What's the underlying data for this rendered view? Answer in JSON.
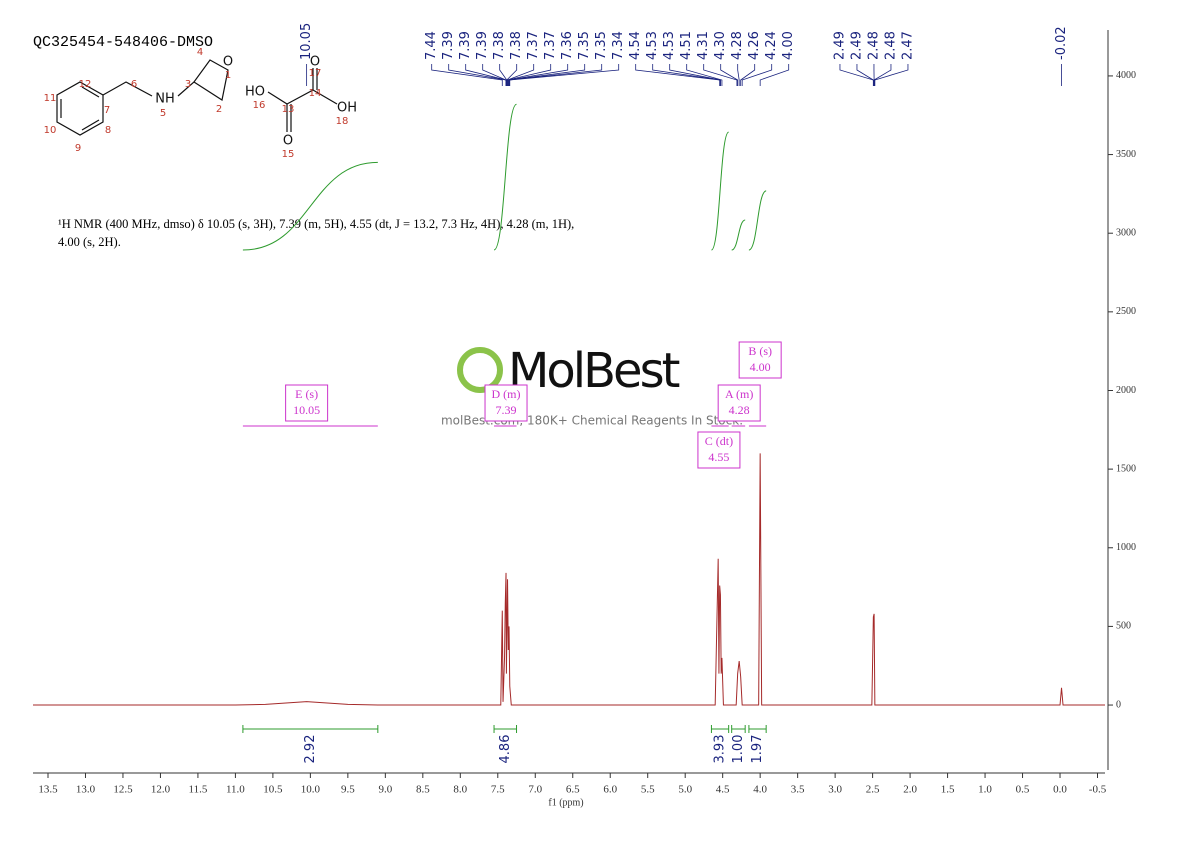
{
  "chart_data": {
    "type": "nmr",
    "title": "QC325454-548406-DMSO",
    "description": "¹H NMR (400 MHz, dmso) δ 10.05 (s, 3H), 7.39 (m, 5H), 4.55 (dt, J = 13.2, 7.3 Hz, 4H), 4.28 (m, 1H),",
    "description_line2": "4.00 (s, 2H).",
    "x_label": "f1 (ppm)",
    "watermark": {
      "logo": "MolBest",
      "text": "molBest.com, 180K+ Chemical Reagents In Stock."
    },
    "molecule": {
      "atoms": [
        "12",
        "11",
        "10",
        "9",
        "8",
        "7",
        "6",
        "NH",
        "5",
        "3",
        "4",
        "O",
        "1",
        "2",
        "HO",
        "16",
        "13",
        "O",
        "15",
        "14",
        "O",
        "17",
        "OH",
        "18"
      ]
    },
    "xlim": [
      13.7,
      -0.6
    ],
    "ylim": [
      -413,
      4292
    ],
    "xticks": [
      13.5,
      {
        "value": 13,
        "label": "13.0"
      },
      12.5,
      {
        "value": 12,
        "label": "12.0"
      },
      11.5,
      {
        "value": 11,
        "label": "11.0"
      },
      10.5,
      {
        "value": 10,
        "label": "10.0"
      },
      9.5,
      {
        "value": 9,
        "label": "9.0"
      },
      8.5,
      {
        "value": 8,
        "label": "8.0"
      },
      7.5,
      {
        "value": 7,
        "label": "7.0"
      },
      6.5,
      {
        "value": 6,
        "label": "6.0"
      },
      5.5,
      {
        "value": 5,
        "label": "5.0"
      },
      4.5,
      {
        "value": 4,
        "label": "4.0"
      },
      3.5,
      {
        "value": 3,
        "label": "3.0"
      },
      2.5,
      {
        "value": 2,
        "label": "2.0"
      },
      1.5,
      {
        "value": 1,
        "label": "1.0"
      },
      0.5,
      {
        "value": 0,
        "label": "0.0"
      },
      -0.5
    ],
    "yticks": [
      0,
      500,
      1000,
      1500,
      2000,
      2500,
      3000,
      3500,
      4000
    ],
    "series": [
      {
        "color": "#a52a2a",
        "x": [
          13.7,
          11,
          10.6,
          10.3,
          10.05,
          9.8,
          9.5,
          9.1,
          7.46,
          7.44,
          7.43,
          7.41,
          7.4,
          7.39,
          7.385,
          7.37,
          7.36,
          7.35,
          7.34,
          7.32,
          4.6,
          4.56,
          4.55,
          4.54,
          4.53,
          4.52,
          4.51,
          4.49,
          4.32,
          4.3,
          4.28,
          4.26,
          4.24,
          4.02,
          4.0,
          3.98,
          2.51,
          2.49,
          2.48,
          2.47,
          0.0,
          -0.02,
          -0.04,
          -0.6
        ],
        "values": [
          0,
          0,
          4,
          14,
          22,
          14,
          4,
          0,
          0,
          600,
          20,
          300,
          650,
          840,
          200,
          800,
          350,
          500,
          120,
          0,
          0,
          930,
          200,
          760,
          700,
          200,
          300,
          0,
          0,
          200,
          280,
          180,
          0,
          0,
          1600,
          0,
          0,
          560,
          580,
          0,
          0,
          110,
          0,
          0
        ]
      }
    ],
    "peak_groups": [
      [
        10.05
      ],
      [
        7.44,
        7.39,
        7.39,
        7.39,
        7.38,
        7.38,
        7.37,
        7.37,
        7.36,
        7.35,
        7.35,
        7.34,
        4.54,
        4.53,
        4.53,
        4.51,
        4.31,
        {
          "value": 4.3,
          "label": "4.30"
        },
        4.28,
        4.26,
        4.24,
        {
          "value": 4,
          "label": "4.00"
        }
      ],
      [
        2.49,
        2.49,
        2.48,
        2.48,
        2.47
      ],
      [
        -0.02
      ]
    ],
    "multiplets": [
      {
        "label": "E (s)",
        "shift": 10.05,
        "range": [
          10.9,
          9.1
        ]
      },
      {
        "label": "D (m)",
        "shift": 7.39,
        "range": [
          7.55,
          7.25
        ]
      },
      {
        "label": "A (m)",
        "shift": 4.28,
        "range": [
          4.38,
          4.2
        ]
      },
      {
        "label": "B (s)",
        "shift": {
          "value": 4,
          "label": "4.00"
        },
        "range": [
          4.15,
          3.92
        ]
      },
      {
        "label": "C (dt)",
        "shift": 4.55,
        "range": [
          4.65,
          4.42
        ]
      }
    ],
    "integrals": {
      "ranges": [
        [
          10.9,
          9.1
        ],
        [
          7.55,
          7.25
        ],
        [
          4.65,
          4.42
        ],
        [
          4.38,
          4.2
        ],
        [
          4.15,
          3.92
        ]
      ],
      "values": [
        2.92,
        4.86,
        3.93,
        1,
        1.97
      ],
      "value_labels": [
        "2.92",
        "4.86",
        "3.93",
        "1.00",
        "1.97"
      ]
    }
  }
}
